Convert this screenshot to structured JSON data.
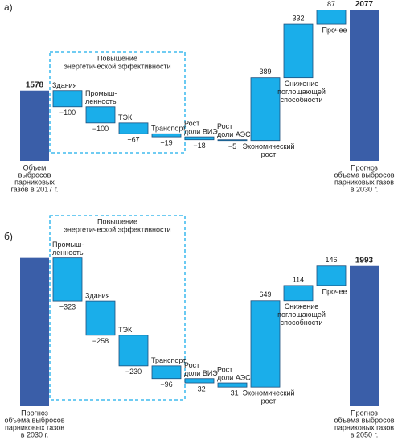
{
  "chart_data": [
    {
      "type": "waterfall",
      "panel": "а)",
      "group_label": [
        "Повышение",
        "энергетической эффективности"
      ],
      "start": {
        "label": [
          "Объем",
          "выбросов",
          "парниковых",
          "газов в 2017 г."
        ],
        "value": 1578,
        "value_printed": true
      },
      "categories": [
        [
          "Здания"
        ],
        [
          "Промыш-",
          "ленность"
        ],
        [
          "ТЭК"
        ],
        [
          "Транспорт"
        ],
        [
          "Рост",
          "доли ВИЭ"
        ],
        [
          "Рост",
          "доли АЭС"
        ],
        [
          "Экономический",
          "рост"
        ],
        [
          "Снижение",
          "поглощающей",
          "способности"
        ],
        [
          "Прочее"
        ]
      ],
      "values": [
        -100,
        -100,
        -67,
        -19,
        -18,
        -5,
        389,
        332,
        87
      ],
      "value_labels": [
        "−100",
        "−100",
        "−67",
        "−19",
        "−18",
        "−5",
        "389",
        "332",
        "87"
      ],
      "end": {
        "label": [
          "Прогноз",
          "объема выбросов",
          "парниковых газов",
          "в 2030 г."
        ],
        "value": 2077,
        "value_printed": true
      },
      "ylim": [
        1143,
        2090
      ],
      "color": "#1aaeea",
      "total_color": "#3a5ea8"
    },
    {
      "type": "waterfall",
      "panel": "б)",
      "group_label": [
        "Повышение",
        "энергетической эффективности"
      ],
      "start": {
        "label": [
          "Прогноз",
          "объема выбросов",
          "парниковых газов",
          "в 2030 г."
        ],
        "value": 2054,
        "value_printed": false
      },
      "categories": [
        [
          "Промыш-",
          "ленность"
        ],
        [
          "Здания"
        ],
        [
          "ТЭК"
        ],
        [
          "Транспорт"
        ],
        [
          "Рост",
          "доли ВИЭ"
        ],
        [
          "Рост",
          "доли АЭС"
        ],
        [
          "Экономический",
          "рост"
        ],
        [
          "Снижение",
          "поглощающей",
          "способности"
        ],
        [
          "Прочее"
        ]
      ],
      "values": [
        -323,
        -258,
        -230,
        -96,
        -32,
        -31,
        649,
        114,
        146
      ],
      "value_labels": [
        "−323",
        "−258",
        "−230",
        "−96",
        "−32",
        "−31",
        "649",
        "114",
        "146"
      ],
      "end": {
        "label": [
          "Прогноз",
          "объема выбросов",
          "парниковых газов",
          "в 2050 г."
        ],
        "value": 1993,
        "value_printed": true
      },
      "ylim": [
        940,
        2070
      ],
      "color": "#1aaeea",
      "total_color": "#3a5ea8"
    }
  ]
}
